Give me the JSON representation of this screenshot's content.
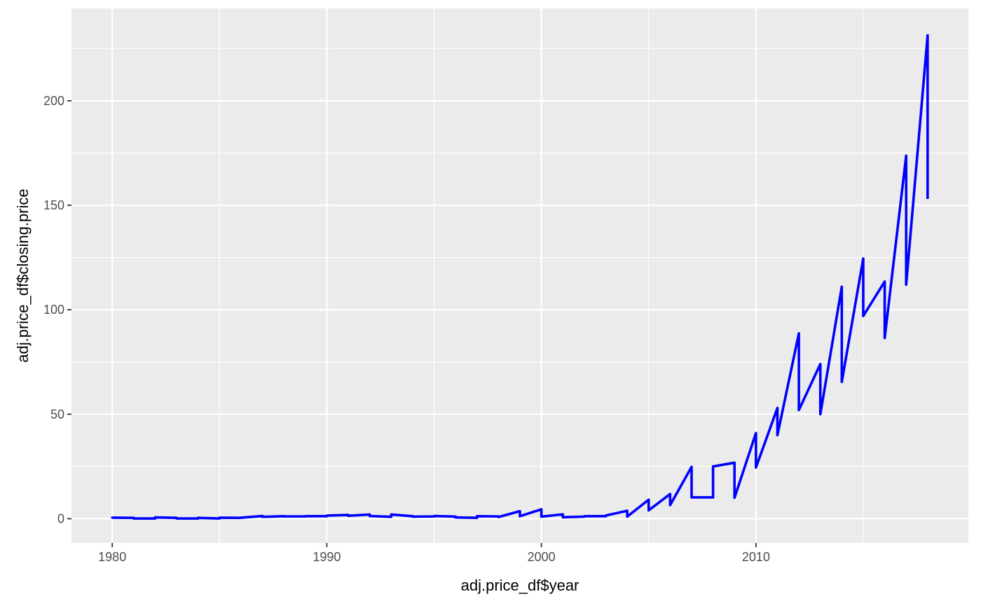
{
  "chart_data": {
    "type": "line",
    "title": "",
    "xlabel": "adj.price_df$year",
    "ylabel": "adj.price_df$closing.price",
    "xlim": [
      1978.1,
      2019.9
    ],
    "ylim": [
      -11.6,
      244.2
    ],
    "x_ticks": [
      1980,
      1990,
      2000,
      2010
    ],
    "y_ticks": [
      0,
      50,
      100,
      150,
      200
    ],
    "x_tick_labels": [
      "1980",
      "1990",
      "2000",
      "2010"
    ],
    "y_tick_labels": [
      "0",
      "50",
      "100",
      "150",
      "200"
    ],
    "grid": true,
    "legend": "none",
    "colors": {
      "panel_background": "#ebebeb",
      "grid": "#ffffff",
      "line": "#0000ff",
      "tick": "#333333"
    },
    "series": [
      {
        "x": [
          1980,
          1980,
          1981,
          1981,
          1982,
          1982,
          1983,
          1983,
          1984,
          1984,
          1985,
          1985,
          1986,
          1986,
          1987,
          1987,
          1988,
          1988,
          1989,
          1989,
          1990,
          1990,
          1991,
          1991,
          1992,
          1992,
          1993,
          1993,
          1994,
          1994,
          1995,
          1995,
          1996,
          1996,
          1997,
          1997,
          1998,
          1998,
          1999,
          1999,
          2000,
          2000,
          2001,
          2001,
          2002,
          2002,
          2003,
          2003,
          2004,
          2004,
          2005,
          2005,
          2006,
          2006,
          2007,
          2007,
          2008,
          2008,
          2009,
          2009,
          2010,
          2010,
          2011,
          2011,
          2012,
          2012,
          2013,
          2013,
          2014,
          2014,
          2015,
          2015,
          2016,
          2016,
          2017,
          2017,
          2018,
          2018
        ],
        "y": [
          0.1,
          0.5,
          0.4,
          0.1,
          0.1,
          0.6,
          0.4,
          0.1,
          0.1,
          0.4,
          0.1,
          0.5,
          0.4,
          0.5,
          1.3,
          0.9,
          1.2,
          1.1,
          1.1,
          1.2,
          1.2,
          1.5,
          1.8,
          1.4,
          2.0,
          1.3,
          0.9,
          2.0,
          1.2,
          1.0,
          1.1,
          1.3,
          1.0,
          0.6,
          0.4,
          1.2,
          1.1,
          0.8,
          3.6,
          1.2,
          4.5,
          1.0,
          2.1,
          0.7,
          1.0,
          1.2,
          1.2,
          1.5,
          3.8,
          1.0,
          9.1,
          4.0,
          11.8,
          6.5,
          24.8,
          10.2,
          10.2,
          25.0,
          26.8,
          10.0,
          41.0,
          24.5,
          53.0,
          40.0,
          88.7,
          52.0,
          74.0,
          50.0,
          111.0,
          65.5,
          124.5,
          97.0,
          113.5,
          86.5,
          173.7,
          112.0,
          231.3,
          153.0
        ]
      }
    ]
  }
}
